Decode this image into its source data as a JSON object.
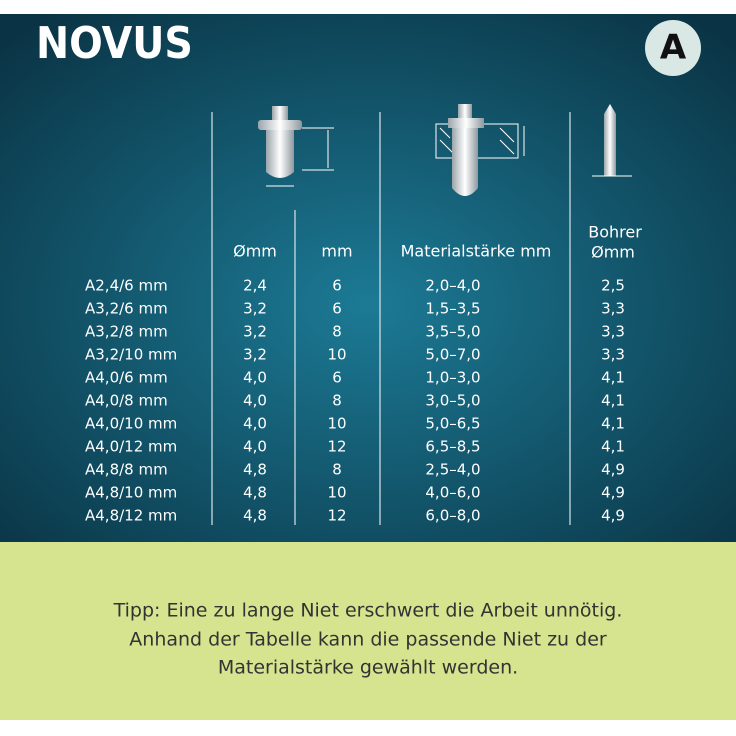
{
  "header": {
    "brand": "NOVUS",
    "badge": "A"
  },
  "table": {
    "columns": [
      "Ømm",
      "mm",
      "Materialstärke mm",
      "Bohrer",
      "Ømm"
    ],
    "rows": [
      [
        "A2,4/6 mm",
        "2,4",
        "6",
        "2,0–4,0",
        "2,5"
      ],
      [
        "A3,2/6 mm",
        "3,2",
        "6",
        "1,5–3,5",
        "3,3"
      ],
      [
        "A3,2/8 mm",
        "3,2",
        "8",
        "3,5–5,0",
        "3,3"
      ],
      [
        "A3,2/10 mm",
        "3,2",
        "10",
        "5,0–7,0",
        "3,3"
      ],
      [
        "A4,0/6 mm",
        "4,0",
        "6",
        "1,0–3,0",
        "4,1"
      ],
      [
        "A4,0/8 mm",
        "4,0",
        "8",
        "3,0–5,0",
        "4,1"
      ],
      [
        "A4,0/10 mm",
        "4,0",
        "10",
        "5,0–6,5",
        "4,1"
      ],
      [
        "A4,0/12 mm",
        "4,0",
        "12",
        "6,5–8,5",
        "4,1"
      ],
      [
        "A4,8/8 mm",
        "4,8",
        "8",
        "2,5–4,0",
        "4,9"
      ],
      [
        "A4,8/10 mm",
        "4,8",
        "10",
        "4,0–6,0",
        "4,9"
      ],
      [
        "A4,8/12 mm",
        "4,8",
        "12",
        "6,0–8,0",
        "4,9"
      ]
    ]
  },
  "tip": {
    "lines": [
      "Tipp: Eine zu lange Niet erschwert die Arbeit unnötig.",
      "Anhand der Tabelle kann die passende Niet zu der",
      "Materialstärke gewählt werden."
    ]
  }
}
